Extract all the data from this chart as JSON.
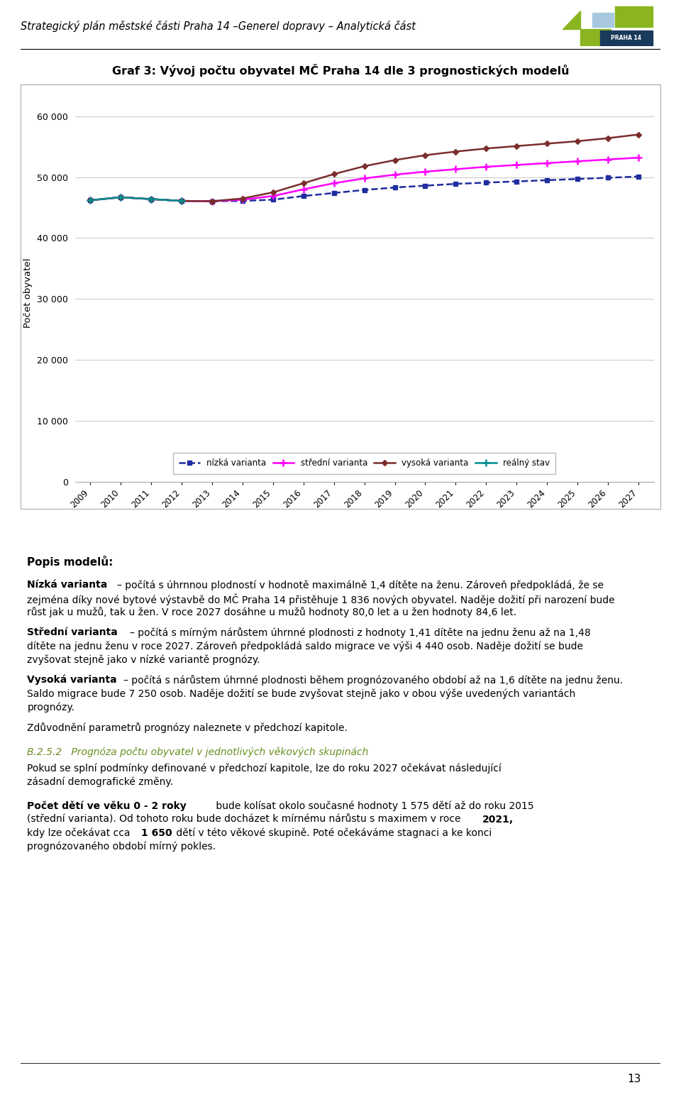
{
  "title": "Graf 3: Vývoj počtu obyvatel MČ Praha 14 dle 3 prognostických modelů",
  "ylabel": "Počet obyvatel",
  "years": [
    2009,
    2010,
    2011,
    2012,
    2013,
    2014,
    2015,
    2016,
    2017,
    2018,
    2019,
    2020,
    2021,
    2022,
    2023,
    2024,
    2025,
    2026,
    2027
  ],
  "nizka_varianta": [
    46200,
    46700,
    46400,
    46100,
    46050,
    46100,
    46300,
    46900,
    47400,
    47900,
    48300,
    48600,
    48900,
    49100,
    49300,
    49500,
    49700,
    49900,
    50100
  ],
  "stredni_varianta": [
    46200,
    46700,
    46400,
    46100,
    46050,
    46300,
    46900,
    48000,
    49000,
    49800,
    50400,
    50900,
    51300,
    51700,
    52000,
    52300,
    52600,
    52900,
    53200
  ],
  "vysoka_varianta": [
    46200,
    46700,
    46400,
    46100,
    46050,
    46500,
    47500,
    49000,
    50500,
    51800,
    52800,
    53600,
    54200,
    54700,
    55100,
    55500,
    55900,
    56400,
    57000
  ],
  "realny_stav": [
    46200,
    46700,
    46400,
    46100,
    null,
    null,
    null,
    null,
    null,
    null,
    null,
    null,
    null,
    null,
    null,
    null,
    null,
    null,
    null
  ],
  "nizka_color": "#1F2D9E",
  "stredni_color": "#FF00FF",
  "vysoka_color": "#7B2D2D",
  "realny_color": "#009090",
  "ylim": [
    0,
    62000
  ],
  "yticks": [
    0,
    10000,
    20000,
    30000,
    40000,
    50000,
    60000
  ],
  "header_text": "Strategický plán městské části Praha 14 –Generel dopravy – Analytická část",
  "page_number": "13",
  "nizka_label": "nízká varianta",
  "stredni_label": "střední varianta",
  "vysoka_label": "vysoká varianta",
  "realny_label": "reálný stav",
  "section_color": "#6B8E23",
  "header_line_color": "#000000",
  "logo_dark": "#1a3a5c",
  "logo_green": "#8ab520",
  "logo_blue_light": "#a8c8e0"
}
